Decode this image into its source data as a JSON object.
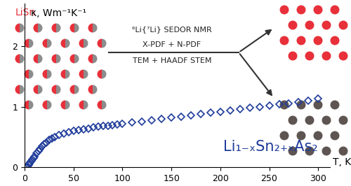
{
  "chart_data": {
    "type": "scatter",
    "xlabel": "T, K",
    "ylabel": "κ, Wm⁻¹K⁻¹",
    "x": [
      2,
      3,
      4,
      5,
      6,
      7,
      8,
      9,
      10,
      12,
      14,
      16,
      18,
      20,
      22,
      25,
      28,
      31,
      35,
      40,
      45,
      50,
      55,
      60,
      65,
      70,
      75,
      80,
      85,
      90,
      95,
      100,
      110,
      120,
      130,
      140,
      150,
      160,
      170,
      180,
      190,
      200,
      210,
      220,
      230,
      240,
      250,
      260,
      270,
      280,
      290,
      300
    ],
    "values": [
      0.01,
      0.02,
      0.04,
      0.06,
      0.08,
      0.11,
      0.13,
      0.16,
      0.18,
      0.23,
      0.27,
      0.31,
      0.35,
      0.38,
      0.41,
      0.45,
      0.48,
      0.5,
      0.53,
      0.56,
      0.58,
      0.6,
      0.62,
      0.63,
      0.64,
      0.66,
      0.67,
      0.68,
      0.69,
      0.7,
      0.71,
      0.72,
      0.74,
      0.76,
      0.78,
      0.8,
      0.82,
      0.84,
      0.86,
      0.88,
      0.9,
      0.92,
      0.94,
      0.96,
      0.98,
      1.0,
      1.02,
      1.04,
      1.06,
      1.08,
      1.1,
      1.13
    ],
    "color": "#1f3c9a",
    "marker": "diamond",
    "xlim": [
      0,
      312
    ],
    "ylim": [
      0,
      2.7
    ],
    "xticks": [
      0,
      50,
      100,
      150,
      200,
      250,
      300
    ],
    "yticks": [
      0,
      1,
      2
    ],
    "annotations": [
      "LiSn",
      "⁶Li{⁷Li} SEDOR NMR",
      "X-PDF + N-PDF",
      "TEM + HAADF STEM",
      "Li₁₋ₓSn₂₊ₓAs₂"
    ]
  }
}
